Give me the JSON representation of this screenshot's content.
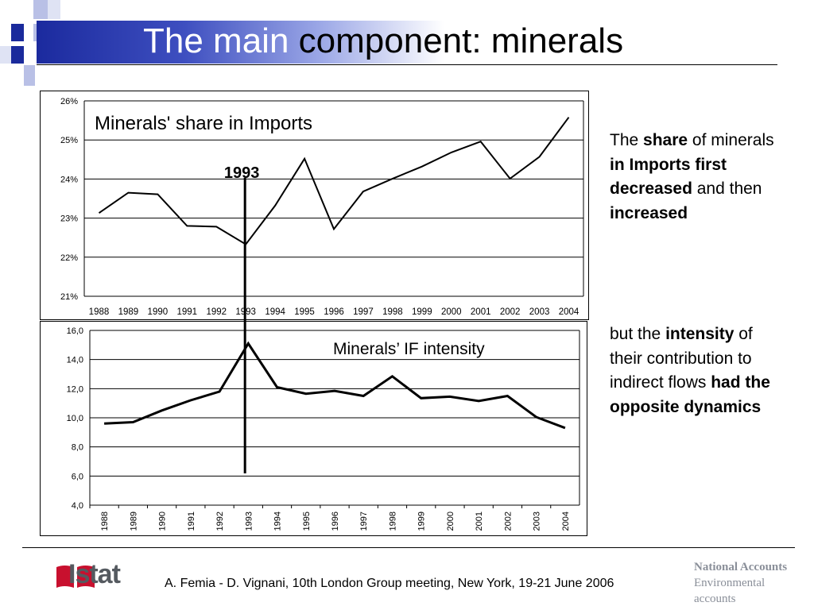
{
  "slide": {
    "title_part1": "The main",
    "title_part2": "component: minerals"
  },
  "chart_data": [
    {
      "type": "line",
      "title": "Minerals' share in Imports",
      "xlabel": "",
      "ylabel": "",
      "categories": [
        "1988",
        "1989",
        "1990",
        "1991",
        "1992",
        "1993",
        "1994",
        "1995",
        "1996",
        "1997",
        "1998",
        "1999",
        "2000",
        "2001",
        "2002",
        "2003",
        "2004"
      ],
      "series": [
        {
          "values": [
            23.13,
            23.65,
            23.61,
            22.8,
            22.78,
            22.33,
            23.32,
            24.52,
            22.72,
            23.68,
            24.01,
            24.32,
            24.68,
            24.96,
            24.01,
            24.57,
            25.58
          ]
        }
      ],
      "ylim": [
        21,
        26
      ],
      "yticks": [
        "21%",
        "22%",
        "23%",
        "24%",
        "25%",
        "26%"
      ],
      "ytick_values": [
        21,
        22,
        23,
        24,
        25,
        26
      ],
      "grid": true,
      "annotation": "1993"
    },
    {
      "type": "line",
      "title": "Minerals’ IF intensity",
      "xlabel": "",
      "ylabel": "",
      "categories": [
        "1988",
        "1989",
        "1990",
        "1991",
        "1992",
        "1993",
        "1994",
        "1995",
        "1996",
        "1997",
        "1998",
        "1999",
        "2000",
        "2001",
        "2002",
        "2003",
        "2004"
      ],
      "series": [
        {
          "values": [
            9.6,
            9.7,
            10.5,
            11.2,
            11.8,
            15.1,
            12.1,
            11.65,
            11.85,
            11.5,
            12.85,
            11.35,
            11.45,
            11.15,
            11.5,
            10.05,
            9.3
          ]
        }
      ],
      "ylim": [
        4,
        16
      ],
      "yticks": [
        "4,0",
        "6,0",
        "8,0",
        "10,0",
        "12,0",
        "14,0",
        "16,0"
      ],
      "ytick_values": [
        4,
        6,
        8,
        10,
        12,
        14,
        16
      ],
      "grid": true
    }
  ],
  "side": {
    "p1": {
      "a": "The ",
      "b": "share",
      "c": " of minerals ",
      "d": "in Imports first decreased",
      "e": " and then ",
      "f": "increased"
    },
    "p2": {
      "a": "but the ",
      "b": "intensity",
      "c": " of their contribution to indirect flows ",
      "d": "had the opposite dynamics"
    }
  },
  "footer": {
    "text": "A. Femia - D. Vignani, 10th London Group meeting, New York, 19-21 June 2006",
    "logo": "Istat",
    "na_line1": "National Accounts",
    "na_line2": "Environmental",
    "na_line3": "accounts"
  },
  "colors": {
    "title_blue": "#1b2a9e",
    "square_blue": "#1a2a9c",
    "square_light": "#b9c0e6",
    "logo_red": "#c8102e",
    "logo_gray": "#555a60"
  }
}
